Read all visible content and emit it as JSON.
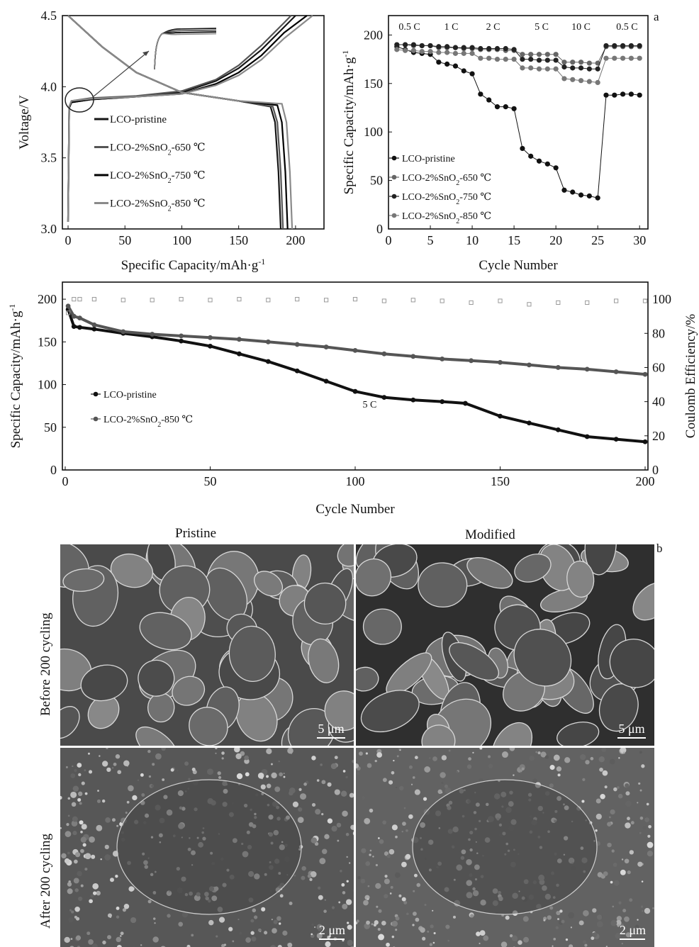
{
  "panel_labels": {
    "a": "a",
    "b": "b"
  },
  "chart_data": [
    {
      "type": "line",
      "ylabel": "Voltage/V",
      "xlabel": "Specific Capacity/mAh·g⁻¹",
      "xlim": [
        -5,
        225
      ],
      "ylim": [
        3.0,
        4.5
      ],
      "xticks": [
        "0",
        "50",
        "100",
        "150",
        "200"
      ],
      "yticks": [
        "3.0",
        "3.5",
        "4.0",
        "4.5"
      ],
      "legend_position": "middle-left",
      "series": [
        {
          "name": "LCO-pristine",
          "color": "#151515",
          "charge": [
            [
              0,
              3.05
            ],
            [
              1,
              3.85
            ],
            [
              3,
              3.89
            ],
            [
              20,
              3.91
            ],
            [
              60,
              3.93
            ],
            [
              100,
              3.96
            ],
            [
              130,
              4.04
            ],
            [
              150,
              4.13
            ],
            [
              170,
              4.26
            ],
            [
              185,
              4.38
            ],
            [
              200,
              4.5
            ]
          ],
          "discharge": [
            [
              0,
              4.5
            ],
            [
              30,
              4.28
            ],
            [
              60,
              4.1
            ],
            [
              100,
              3.96
            ],
            [
              150,
              3.9
            ],
            [
              178,
              3.86
            ],
            [
              182,
              3.75
            ],
            [
              185,
              3.4
            ],
            [
              187,
              3.0
            ]
          ]
        },
        {
          "name": "LCO-2%SnO₂-650 ℃",
          "color": "#555555",
          "charge": [
            [
              0,
              3.05
            ],
            [
              1,
              3.86
            ],
            [
              3,
              3.9
            ],
            [
              20,
              3.92
            ],
            [
              60,
              3.935
            ],
            [
              100,
              3.97
            ],
            [
              130,
              4.05
            ],
            [
              150,
              4.15
            ],
            [
              170,
              4.29
            ],
            [
              190,
              4.45
            ],
            [
              196,
              4.5
            ]
          ],
          "discharge": [
            [
              0,
              4.5
            ],
            [
              30,
              4.28
            ],
            [
              60,
              4.1
            ],
            [
              100,
              3.96
            ],
            [
              150,
              3.9
            ],
            [
              180,
              3.86
            ],
            [
              184,
              3.75
            ],
            [
              187,
              3.4
            ],
            [
              189,
              3.0
            ]
          ]
        },
        {
          "name": "LCO-2%SnO₂-750 ℃",
          "color": "#000000",
          "charge": [
            [
              0,
              3.05
            ],
            [
              1,
              3.85
            ],
            [
              3,
              3.89
            ],
            [
              20,
              3.91
            ],
            [
              60,
              3.93
            ],
            [
              100,
              3.95
            ],
            [
              130,
              4.02
            ],
            [
              150,
              4.1
            ],
            [
              170,
              4.22
            ],
            [
              190,
              4.38
            ],
            [
              210,
              4.5
            ]
          ],
          "discharge": [
            [
              0,
              4.5
            ],
            [
              30,
              4.28
            ],
            [
              60,
              4.1
            ],
            [
              100,
              3.96
            ],
            [
              150,
              3.9
            ],
            [
              184,
              3.87
            ],
            [
              188,
              3.75
            ],
            [
              191,
              3.4
            ],
            [
              193,
              3.0
            ]
          ]
        },
        {
          "name": "LCO-2%SnO₂-850 ℃",
          "color": "#8a8a8a",
          "charge": [
            [
              0,
              3.05
            ],
            [
              1,
              3.86
            ],
            [
              3,
              3.9
            ],
            [
              20,
              3.915
            ],
            [
              60,
              3.93
            ],
            [
              100,
              3.95
            ],
            [
              130,
              4.01
            ],
            [
              150,
              4.08
            ],
            [
              170,
              4.19
            ],
            [
              190,
              4.34
            ],
            [
              215,
              4.5
            ]
          ],
          "discharge": [
            [
              0,
              4.5
            ],
            [
              30,
              4.28
            ],
            [
              60,
              4.1
            ],
            [
              100,
              3.96
            ],
            [
              150,
              3.9
            ],
            [
              188,
              3.88
            ],
            [
              192,
              3.75
            ],
            [
              195,
              3.4
            ],
            [
              197,
              3.0
            ]
          ]
        }
      ]
    },
    {
      "type": "scatter",
      "ylabel": "Specific Capacity/mAh·g⁻¹",
      "xlabel": "Cycle Number",
      "xlim": [
        0,
        31
      ],
      "ylim": [
        0,
        220
      ],
      "xticks": [
        "0",
        "5",
        "10",
        "15",
        "20",
        "25",
        "30"
      ],
      "yticks": [
        "0",
        "50",
        "100",
        "150",
        "200"
      ],
      "legend_position": "bottom-left",
      "rate_labels": [
        {
          "text": "0.5 C",
          "x": 2.5
        },
        {
          "text": "1 C",
          "x": 7.5
        },
        {
          "text": "2 C",
          "x": 12.5
        },
        {
          "text": "5 C",
          "x": 18.3
        },
        {
          "text": "10 C",
          "x": 23.0
        },
        {
          "text": "0.5 C",
          "x": 28.5
        }
      ],
      "x": [
        1,
        2,
        3,
        4,
        5,
        6,
        7,
        8,
        9,
        10,
        11,
        12,
        13,
        14,
        15,
        16,
        17,
        18,
        19,
        20,
        21,
        22,
        23,
        24,
        25,
        26,
        27,
        28,
        29,
        30
      ],
      "series": [
        {
          "name": "LCO-pristine",
          "color": "#111111",
          "values": [
            188,
            185,
            182,
            181,
            180,
            172,
            170,
            168,
            163,
            160,
            139,
            133,
            126,
            126,
            124,
            83,
            75,
            70,
            67,
            63,
            40,
            38,
            35,
            34,
            32,
            138,
            138,
            139,
            139,
            138
          ]
        },
        {
          "name": "LCO-2%SnO₂-650 ℃",
          "color": "#666666",
          "values": [
            190,
            190,
            189,
            189,
            189,
            187,
            187,
            187,
            186,
            186,
            185,
            185,
            185,
            184,
            184,
            180,
            180,
            180,
            180,
            180,
            172,
            172,
            172,
            171,
            171,
            188,
            188,
            188,
            188,
            188
          ]
        },
        {
          "name": "LCO-2%SnO₂-750 ℃",
          "color": "#222222",
          "values": [
            190,
            190,
            190,
            189,
            189,
            188,
            188,
            187,
            187,
            187,
            186,
            186,
            186,
            186,
            185,
            175,
            175,
            174,
            174,
            174,
            167,
            166,
            166,
            165,
            165,
            189,
            189,
            189,
            189,
            189
          ]
        },
        {
          "name": "LCO-2%SnO₂-850 ℃",
          "color": "#777777",
          "values": [
            185,
            184,
            184,
            183,
            183,
            182,
            182,
            181,
            181,
            181,
            176,
            176,
            175,
            175,
            175,
            166,
            166,
            165,
            165,
            165,
            155,
            154,
            153,
            152,
            151,
            176,
            176,
            176,
            176,
            176
          ]
        }
      ]
    },
    {
      "type": "scatter",
      "ylabel": "Specific Capacity/mAh·g⁻¹",
      "y2label": "Coulomb Efficiency/%",
      "xlabel": "Cycle Number",
      "xlim": [
        0,
        200
      ],
      "ylim": [
        0,
        220
      ],
      "y2lim": [
        0,
        110
      ],
      "xticks": [
        "0",
        "50",
        "100",
        "150",
        "200"
      ],
      "yticks": [
        "0",
        "50",
        "100",
        "150",
        "200"
      ],
      "y2ticks": [
        "0",
        "20",
        "40",
        "60",
        "80",
        "100"
      ],
      "annotation": "5 C",
      "legend_position": "middle-left",
      "series": [
        {
          "name": "LCO-pristine",
          "color": "#111111",
          "marker": "filled-circle",
          "x": [
            1,
            3,
            5,
            10,
            20,
            30,
            40,
            50,
            60,
            70,
            80,
            90,
            100,
            110,
            120,
            130,
            138,
            150,
            160,
            170,
            180,
            190,
            200
          ],
          "values": [
            188,
            168,
            167,
            165,
            160,
            156,
            151,
            145,
            136,
            127,
            116,
            104,
            92,
            85,
            82,
            80,
            78,
            63,
            55,
            47,
            39,
            36,
            33
          ]
        },
        {
          "name": "LCO-2%SnO₂-850 ℃",
          "color": "#555555",
          "marker": "filled-circle",
          "x": [
            1,
            3,
            5,
            10,
            20,
            30,
            40,
            50,
            60,
            70,
            80,
            90,
            100,
            110,
            120,
            130,
            140,
            150,
            160,
            170,
            180,
            190,
            200
          ],
          "values": [
            192,
            180,
            178,
            170,
            162,
            159,
            157,
            155,
            153,
            150,
            147,
            144,
            140,
            136,
            133,
            130,
            128,
            126,
            123,
            120,
            118,
            115,
            112
          ]
        },
        {
          "name": "Coulomb Efficiency",
          "axis": "y2",
          "color": "#999999",
          "marker": "open-square",
          "x": [
            1,
            3,
            5,
            10,
            20,
            30,
            40,
            50,
            60,
            70,
            80,
            90,
            100,
            110,
            120,
            130,
            140,
            150,
            160,
            170,
            180,
            190,
            200
          ],
          "values": [
            92,
            100,
            100,
            100,
            99.5,
            99.5,
            100,
            99.5,
            100,
            99.5,
            100,
            99.5,
            100,
            99,
            99.5,
            99,
            98,
            99,
            97,
            98,
            98,
            99,
            99
          ]
        }
      ]
    }
  ],
  "sem": {
    "column_titles": [
      "Pristine",
      "Modified"
    ],
    "row_titles": [
      "Before 200 cycling",
      "After 200 cycling"
    ],
    "scale_bars": [
      "5 μm",
      "5 μm",
      "2 μm",
      "2 μm"
    ]
  }
}
